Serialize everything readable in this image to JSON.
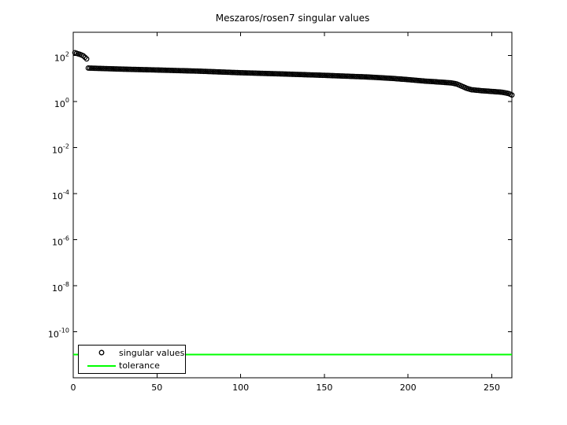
{
  "window": {
    "background": "#ffffff"
  },
  "chart_data": {
    "type": "scatter",
    "title": "Meszaros/rosen7 singular values",
    "xlabel": "",
    "ylabel": "",
    "grid": false,
    "x_axis": {
      "ticks": [
        0,
        50,
        100,
        150,
        200,
        250
      ],
      "lim": [
        0,
        262
      ]
    },
    "y_axis": {
      "scale": "log",
      "base_label": "10",
      "tick_exponents": [
        2,
        0,
        -2,
        -4,
        -6,
        -8,
        -10
      ],
      "lim_exponents": [
        -12,
        3
      ]
    },
    "series": [
      {
        "name": "singular values",
        "style": "marker-circle",
        "color": "#000000",
        "n_points": 262,
        "anchors_x": [
          1,
          2,
          4,
          6,
          8,
          9,
          15,
          30,
          50,
          75,
          100,
          125,
          150,
          175,
          190,
          200,
          210,
          220,
          226,
          229,
          232,
          235,
          238,
          244,
          250,
          256,
          260,
          262
        ],
        "anchors_value": [
          130,
          122,
          110,
          95,
          70,
          28,
          27,
          25,
          23,
          20.5,
          17.5,
          15.5,
          13.5,
          11.5,
          10,
          8.8,
          7.6,
          6.8,
          6.3,
          5.7,
          4.6,
          3.7,
          3.2,
          2.9,
          2.7,
          2.5,
          2.2,
          1.9
        ]
      },
      {
        "name": "tolerance",
        "style": "hline",
        "color": "#00ff00",
        "value": 1e-11
      }
    ],
    "legend": {
      "position": "southwest",
      "entries": [
        {
          "label": "singular values",
          "marker": "circle",
          "color": "#000000"
        },
        {
          "label": "tolerance",
          "marker": "line",
          "color": "#00ff00"
        }
      ]
    }
  }
}
